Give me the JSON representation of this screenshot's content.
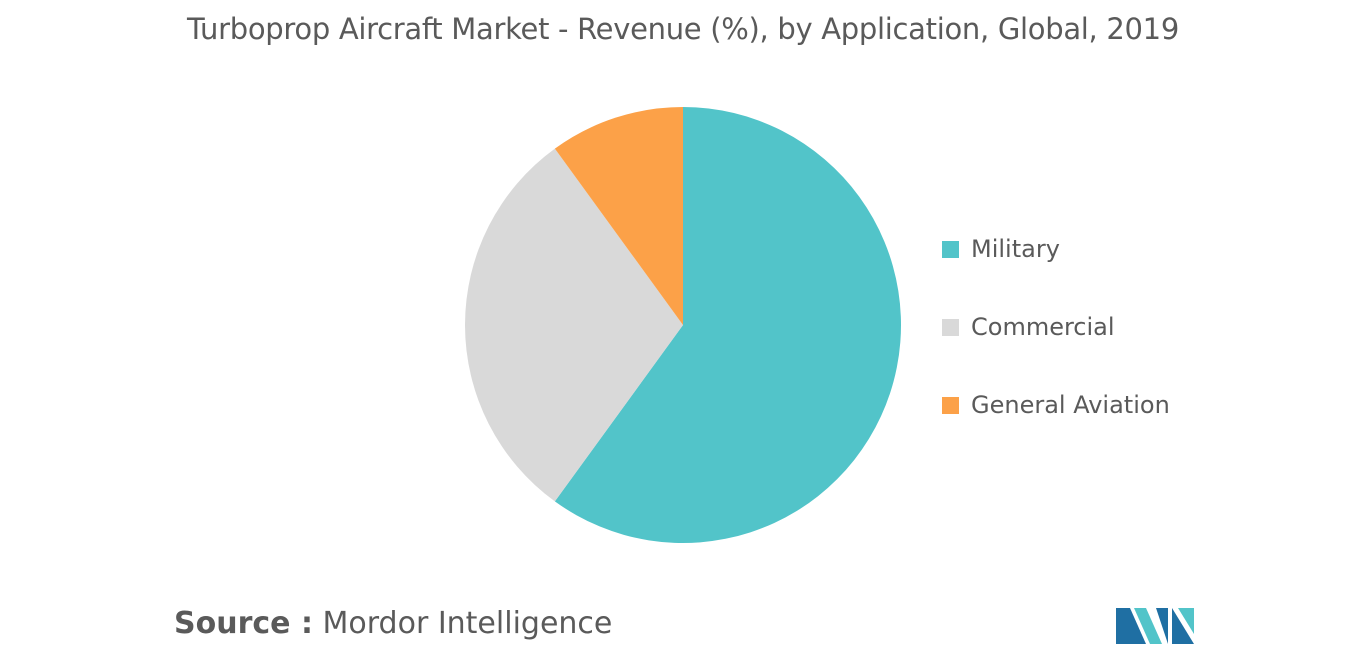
{
  "chart_data": {
    "type": "pie",
    "title": "Turboprop Aircraft Market - Revenue (%), by Application, Global, 2019",
    "slices": [
      {
        "label": "Military",
        "value": 60,
        "color": "#52c4c9"
      },
      {
        "label": "Commercial",
        "value": 30,
        "color": "#d9d9d9"
      },
      {
        "label": "General Aviation",
        "value": 10,
        "color": "#fca148"
      }
    ],
    "legend_position": "right"
  },
  "source": {
    "prefix": "Source :",
    "name": "Mordor Intelligence"
  },
  "logo": {
    "icon": "mordor-intelligence-logo",
    "colors": [
      "#1f6fa3",
      "#52c4c9"
    ]
  }
}
